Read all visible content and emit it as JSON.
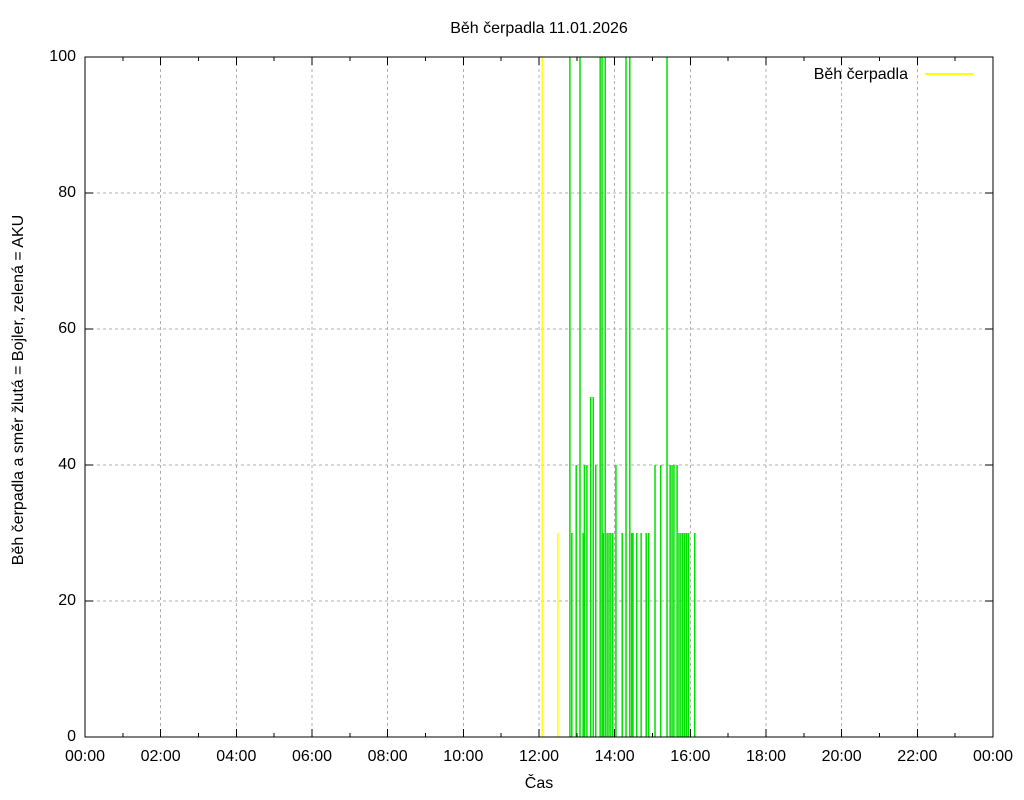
{
  "title": "Běh čerpadla 11.01.2026",
  "legend": {
    "label": "Běh čerpadla",
    "sample_color": "#ffff00",
    "position": "top-right"
  },
  "x_axis": {
    "label": "Čas",
    "tick_labels": [
      "00:00",
      "02:00",
      "04:00",
      "06:00",
      "08:00",
      "10:00",
      "12:00",
      "14:00",
      "16:00",
      "18:00",
      "20:00",
      "22:00",
      "00:00"
    ]
  },
  "y_axis": {
    "label": "Běh čerpadla a směr žlutá = Bojler, zelená = AKU",
    "tick_labels": [
      "0",
      "20",
      "40",
      "60",
      "80",
      "100"
    ]
  },
  "colors": {
    "bojler_yellow": "#ffff00",
    "aku_green": "#00e000",
    "grid": "#b0b0b0",
    "axis": "#000000",
    "background": "#ffffff"
  },
  "chart_data": {
    "type": "bar",
    "style": "impulse",
    "title": "Běh čerpadla 11.01.2026",
    "xlabel": "Čas",
    "ylabel": "Běh čerpadla a směr žlutá = Bojler, zelená = AKU",
    "x_range_hours": [
      0,
      24
    ],
    "x_major_tick_hours": 2,
    "x_minor_tick_hours": 1,
    "ylim": [
      0,
      100
    ],
    "y_ticks": [
      0,
      20,
      40,
      60,
      80,
      100
    ],
    "grid": true,
    "legend_entries": [
      {
        "label": "Běh čerpadla",
        "color": "#ffff00"
      }
    ],
    "series": [
      {
        "name": "Bojler (žlutá)",
        "color": "#ffff00",
        "points": [
          [
            "12:05",
            100
          ],
          [
            "12:30",
            30
          ]
        ]
      },
      {
        "name": "AKU (zelená)",
        "color": "#00e000",
        "points": [
          [
            "12:49",
            100
          ],
          [
            "12:52",
            30
          ],
          [
            "12:59",
            40
          ],
          [
            "13:05",
            100
          ],
          [
            "13:10",
            30
          ],
          [
            "13:12",
            40
          ],
          [
            "13:16",
            40
          ],
          [
            "13:22",
            50
          ],
          [
            "13:26",
            50
          ],
          [
            "13:30",
            40
          ],
          [
            "13:37",
            100
          ],
          [
            "13:40",
            100
          ],
          [
            "13:42",
            30
          ],
          [
            "13:45",
            100
          ],
          [
            "13:48",
            30
          ],
          [
            "13:51",
            30
          ],
          [
            "13:54",
            30
          ],
          [
            "13:57",
            30
          ],
          [
            "14:02",
            40
          ],
          [
            "14:12",
            30
          ],
          [
            "14:18",
            100
          ],
          [
            "14:24",
            100
          ],
          [
            "14:27",
            30
          ],
          [
            "14:29",
            30
          ],
          [
            "14:35",
            30
          ],
          [
            "14:42",
            30
          ],
          [
            "14:50",
            30
          ],
          [
            "14:54",
            30
          ],
          [
            "15:04",
            40
          ],
          [
            "15:13",
            40
          ],
          [
            "15:23",
            100
          ],
          [
            "15:28",
            40
          ],
          [
            "15:31",
            40
          ],
          [
            "15:34",
            40
          ],
          [
            "15:39",
            40
          ],
          [
            "15:42",
            30
          ],
          [
            "15:45",
            30
          ],
          [
            "15:48",
            30
          ],
          [
            "15:51",
            30
          ],
          [
            "15:54",
            30
          ],
          [
            "15:57",
            30
          ],
          [
            "16:07",
            30
          ]
        ]
      }
    ]
  }
}
